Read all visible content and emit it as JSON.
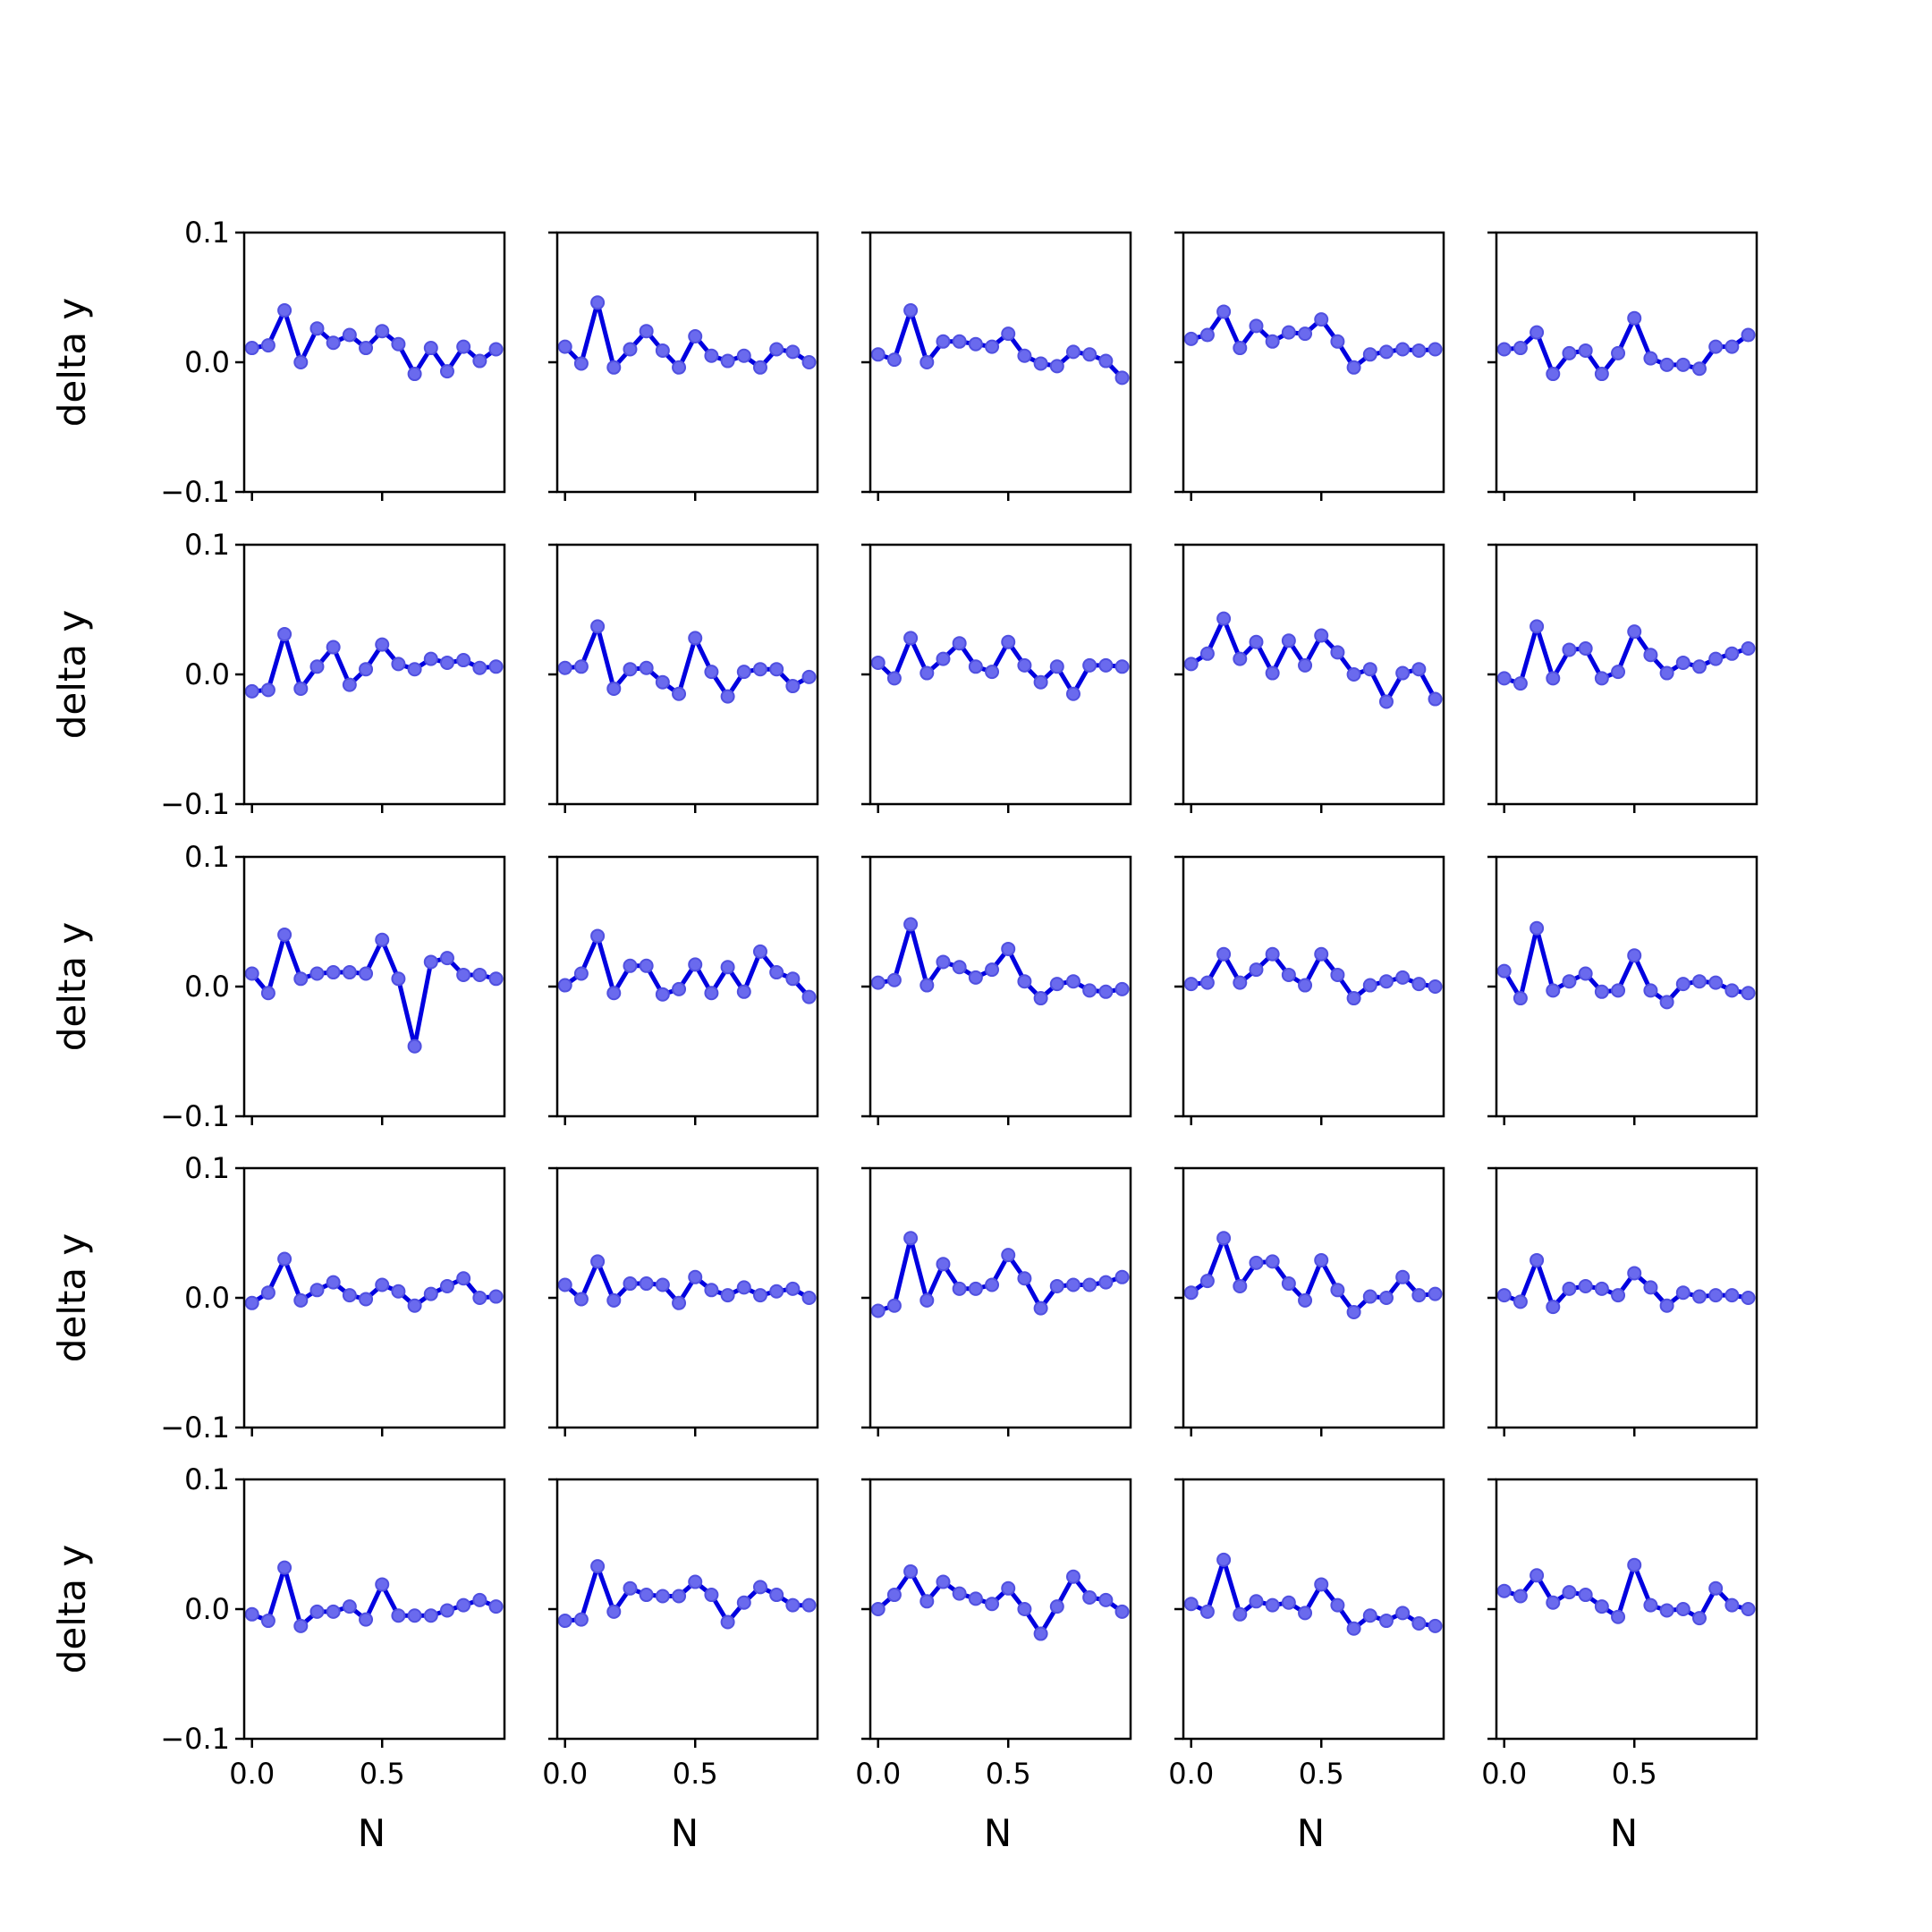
{
  "chart_data": {
    "type": "line",
    "layout": "5x5 small multiples",
    "xlabel": "N",
    "ylabel": "delta y",
    "ylim": [
      -0.1,
      0.1
    ],
    "y_ticks": [
      "0.1",
      "0.0",
      "−0.1"
    ],
    "x_ticks": [
      "0.0",
      "0.5"
    ],
    "x_tick_values": [
      0.0,
      0.5
    ],
    "y_tick_values": [
      0.1,
      0.0,
      -0.1
    ],
    "xlim": [
      -0.03,
      0.97
    ],
    "line_color": "#0000e0",
    "marker_color": "#6a6aee",
    "x": [
      0.0,
      0.0625,
      0.125,
      0.1875,
      0.25,
      0.3125,
      0.375,
      0.4375,
      0.5,
      0.5625,
      0.625,
      0.6875,
      0.75,
      0.8125,
      0.875,
      0.9375
    ],
    "panels": [
      [
        0.011,
        0.013,
        0.04,
        0.0,
        0.026,
        0.015,
        0.021,
        0.011,
        0.024,
        0.014,
        -0.009,
        0.011,
        -0.007,
        0.012,
        0.001,
        0.01
      ],
      [
        0.012,
        -0.001,
        0.046,
        -0.004,
        0.01,
        0.024,
        0.009,
        -0.004,
        0.02,
        0.005,
        0.001,
        0.005,
        -0.004,
        0.01,
        0.008,
        0.0
      ],
      [
        0.006,
        0.002,
        0.04,
        0.0,
        0.016,
        0.016,
        0.014,
        0.012,
        0.022,
        0.005,
        -0.001,
        -0.003,
        0.008,
        0.006,
        0.001,
        -0.012
      ],
      [
        0.018,
        0.021,
        0.039,
        0.011,
        0.028,
        0.016,
        0.023,
        0.022,
        0.033,
        0.016,
        -0.004,
        0.006,
        0.008,
        0.01,
        0.009,
        0.01
      ],
      [
        0.01,
        0.011,
        0.023,
        -0.009,
        0.007,
        0.009,
        -0.009,
        0.007,
        0.034,
        0.003,
        -0.002,
        -0.002,
        -0.005,
        0.012,
        0.012,
        0.021
      ],
      [
        -0.013,
        -0.012,
        0.031,
        -0.011,
        0.006,
        0.021,
        -0.008,
        0.004,
        0.023,
        0.008,
        0.004,
        0.012,
        0.009,
        0.011,
        0.005,
        0.006
      ],
      [
        0.005,
        0.006,
        0.037,
        -0.011,
        0.004,
        0.005,
        -0.006,
        -0.015,
        0.028,
        0.002,
        -0.017,
        0.002,
        0.004,
        0.004,
        -0.009,
        -0.002
      ],
      [
        0.009,
        -0.003,
        0.028,
        0.001,
        0.012,
        0.024,
        0.006,
        0.002,
        0.025,
        0.007,
        -0.006,
        0.006,
        -0.015,
        0.007,
        0.007,
        0.006
      ],
      [
        0.008,
        0.016,
        0.043,
        0.012,
        0.025,
        0.001,
        0.026,
        0.007,
        0.03,
        0.017,
        0.0,
        0.004,
        -0.021,
        0.001,
        0.004,
        -0.019
      ],
      [
        -0.003,
        -0.007,
        0.037,
        -0.003,
        0.019,
        0.02,
        -0.003,
        0.002,
        0.033,
        0.015,
        0.001,
        0.009,
        0.006,
        0.012,
        0.016,
        0.02
      ],
      [
        0.01,
        -0.005,
        0.04,
        0.006,
        0.01,
        0.011,
        0.011,
        0.01,
        0.036,
        0.006,
        -0.046,
        0.019,
        0.022,
        0.009,
        0.009,
        0.006
      ],
      [
        0.001,
        0.01,
        0.039,
        -0.005,
        0.016,
        0.016,
        -0.006,
        -0.002,
        0.017,
        -0.005,
        0.015,
        -0.004,
        0.027,
        0.011,
        0.006,
        -0.008
      ],
      [
        0.003,
        0.005,
        0.048,
        0.001,
        0.019,
        0.015,
        0.007,
        0.013,
        0.029,
        0.004,
        -0.009,
        0.002,
        0.004,
        -0.003,
        -0.004,
        -0.002
      ],
      [
        0.002,
        0.003,
        0.025,
        0.003,
        0.013,
        0.025,
        0.009,
        0.001,
        0.025,
        0.009,
        -0.009,
        0.001,
        0.004,
        0.007,
        0.002,
        0.0
      ],
      [
        0.012,
        -0.009,
        0.045,
        -0.003,
        0.004,
        0.01,
        -0.004,
        -0.003,
        0.024,
        -0.003,
        -0.012,
        0.002,
        0.004,
        0.003,
        -0.003,
        -0.005
      ],
      [
        -0.004,
        0.004,
        0.03,
        -0.002,
        0.006,
        0.012,
        0.002,
        -0.001,
        0.01,
        0.005,
        -0.006,
        0.003,
        0.009,
        0.015,
        0.0,
        0.001
      ],
      [
        0.01,
        -0.001,
        0.028,
        -0.002,
        0.011,
        0.011,
        0.01,
        -0.004,
        0.016,
        0.006,
        0.002,
        0.008,
        0.002,
        0.005,
        0.007,
        0.0
      ],
      [
        -0.01,
        -0.006,
        0.046,
        -0.002,
        0.026,
        0.007,
        0.007,
        0.01,
        0.033,
        0.015,
        -0.008,
        0.009,
        0.01,
        0.01,
        0.012,
        0.016
      ],
      [
        0.004,
        0.013,
        0.046,
        0.009,
        0.027,
        0.028,
        0.011,
        -0.002,
        0.029,
        0.006,
        -0.011,
        0.001,
        0.0,
        0.016,
        0.002,
        0.003
      ],
      [
        0.002,
        -0.003,
        0.029,
        -0.007,
        0.007,
        0.009,
        0.007,
        0.002,
        0.019,
        0.008,
        -0.006,
        0.004,
        0.001,
        0.002,
        0.002,
        0.0
      ],
      [
        -0.004,
        -0.009,
        0.032,
        -0.013,
        -0.002,
        -0.002,
        0.002,
        -0.008,
        0.019,
        -0.005,
        -0.005,
        -0.005,
        -0.001,
        0.003,
        0.007,
        0.002
      ],
      [
        -0.009,
        -0.008,
        0.033,
        -0.002,
        0.016,
        0.011,
        0.01,
        0.01,
        0.021,
        0.011,
        -0.01,
        0.005,
        0.017,
        0.011,
        0.003,
        0.003
      ],
      [
        0.0,
        0.011,
        0.029,
        0.006,
        0.021,
        0.012,
        0.008,
        0.004,
        0.016,
        0.0,
        -0.019,
        0.002,
        0.025,
        0.009,
        0.007,
        -0.002
      ],
      [
        0.004,
        -0.002,
        0.038,
        -0.004,
        0.006,
        0.003,
        0.005,
        -0.003,
        0.019,
        0.003,
        -0.015,
        -0.005,
        -0.009,
        -0.003,
        -0.011,
        -0.013
      ],
      [
        0.014,
        0.01,
        0.026,
        0.005,
        0.013,
        0.011,
        0.002,
        -0.006,
        0.034,
        0.003,
        -0.001,
        0.0,
        -0.007,
        0.016,
        0.003,
        0.0
      ]
    ]
  }
}
